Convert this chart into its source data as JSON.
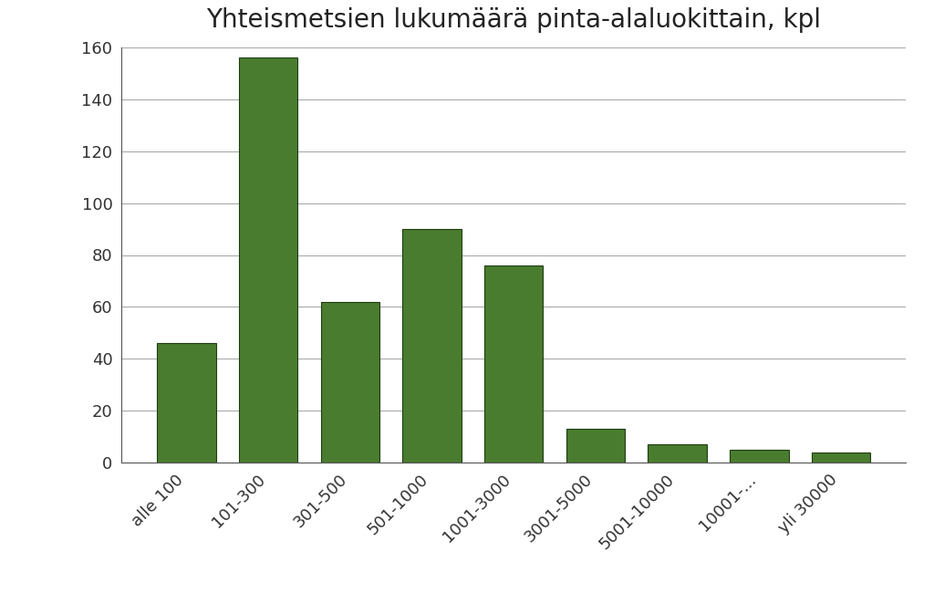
{
  "title": "Yhteismetsien lukumäärä pinta-alaluokittain, kpl",
  "categories": [
    "alle 100",
    "101-300",
    "301-500",
    "501-1000",
    "1001-3000",
    "3001-5000",
    "5001-10000",
    "10001-...",
    "yli 30000"
  ],
  "values": [
    46,
    156,
    62,
    90,
    76,
    13,
    7,
    5,
    4
  ],
  "bar_color": "#4a7c2f",
  "bar_edgecolor": "#1f3d10",
  "ylim": [
    0,
    160
  ],
  "yticks": [
    0,
    20,
    40,
    60,
    80,
    100,
    120,
    140,
    160
  ],
  "background_color": "#ffffff",
  "title_fontsize": 20,
  "tick_fontsize": 13,
  "grid_color": "#aaaaaa",
  "bar_width": 0.72
}
